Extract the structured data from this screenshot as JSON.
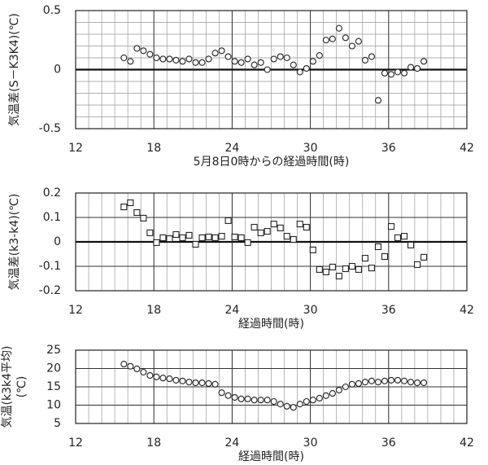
{
  "chart_data": [
    {
      "type": "scatter",
      "marker": "circle",
      "xlabel": "5月8日0時からの経過時間(時)",
      "ylabel": [
        "気温差(S－K3K4)(℃)"
      ],
      "xlim": [
        12,
        42
      ],
      "xticks": [
        12,
        18,
        24,
        30,
        36,
        42
      ],
      "ylim": [
        -0.5,
        0.5
      ],
      "yticks": [
        -0.5,
        0,
        0.5
      ],
      "grid": true,
      "minor_grid": {
        "x": 1,
        "y": 0.1
      },
      "zero_line": true,
      "series": [
        {
          "color": "#222222",
          "x": [
            15.7,
            16.2,
            16.7,
            17.2,
            17.7,
            18.2,
            18.7,
            19.2,
            19.7,
            20.2,
            20.7,
            21.2,
            21.7,
            22.2,
            22.7,
            23.2,
            23.7,
            24.2,
            24.7,
            25.2,
            25.7,
            26.2,
            26.7,
            27.2,
            27.7,
            28.2,
            28.7,
            29.2,
            29.7,
            30.2,
            30.7,
            31.2,
            31.7,
            32.2,
            32.7,
            33.2,
            33.7,
            34.2,
            34.7,
            35.2,
            35.7,
            36.2,
            36.7,
            37.2,
            37.7,
            38.2,
            38.7
          ],
          "values": [
            0.1,
            0.07,
            0.18,
            0.16,
            0.13,
            0.1,
            0.09,
            0.09,
            0.08,
            0.07,
            0.09,
            0.06,
            0.06,
            0.09,
            0.14,
            0.16,
            0.11,
            0.07,
            0.06,
            0.09,
            0.04,
            0.06,
            0.0,
            0.09,
            0.11,
            0.1,
            0.04,
            -0.02,
            0.01,
            0.07,
            0.12,
            0.25,
            0.26,
            0.35,
            0.27,
            0.2,
            0.24,
            0.08,
            0.11,
            -0.26,
            -0.03,
            -0.04,
            -0.02,
            -0.03,
            0.02,
            0.01,
            0.07
          ]
        }
      ]
    },
    {
      "type": "scatter",
      "marker": "square",
      "xlabel": "経過時間(時)",
      "ylabel": [
        "気温差(k3-k4)(℃)"
      ],
      "xlim": [
        12,
        42
      ],
      "xticks": [
        12,
        18,
        24,
        30,
        36,
        42
      ],
      "ylim": [
        -0.2,
        0.2
      ],
      "yticks": [
        -0.2,
        -0.1,
        0,
        0.1,
        0.2
      ],
      "grid": true,
      "minor_grid": {
        "x": 1
      },
      "zero_line": true,
      "series": [
        {
          "color": "#222222",
          "x": [
            15.7,
            16.2,
            16.7,
            17.2,
            17.7,
            18.2,
            18.7,
            19.2,
            19.7,
            20.2,
            20.7,
            21.2,
            21.7,
            22.2,
            22.7,
            23.2,
            23.7,
            24.2,
            24.7,
            25.2,
            25.7,
            26.2,
            26.7,
            27.2,
            27.7,
            28.2,
            28.7,
            29.2,
            29.7,
            30.2,
            30.7,
            31.2,
            31.7,
            32.2,
            32.7,
            33.2,
            33.7,
            34.2,
            34.7,
            35.2,
            35.7,
            36.2,
            36.7,
            37.2,
            37.7,
            38.2,
            38.7
          ],
          "values": [
            0.143,
            0.16,
            0.12,
            0.097,
            0.037,
            -0.003,
            0.017,
            0.013,
            0.03,
            0.017,
            0.027,
            -0.01,
            0.017,
            0.02,
            0.017,
            0.023,
            0.087,
            0.02,
            0.017,
            -0.003,
            0.06,
            0.037,
            0.043,
            0.073,
            0.057,
            0.023,
            0.01,
            0.073,
            0.06,
            -0.033,
            -0.113,
            -0.123,
            -0.103,
            -0.14,
            -0.11,
            -0.1,
            -0.113,
            -0.067,
            -0.107,
            -0.02,
            -0.06,
            0.063,
            0.017,
            0.023,
            -0.013,
            -0.093,
            -0.063
          ]
        }
      ]
    },
    {
      "type": "scatter",
      "marker": "circle",
      "xlabel": "経過時間(時)",
      "ylabel": [
        "気温(k3k4平均)",
        "(℃)"
      ],
      "xlim": [
        12,
        42
      ],
      "xticks": [
        12,
        18,
        24,
        30,
        36,
        42
      ],
      "ylim": [
        5,
        25
      ],
      "yticks": [
        5,
        10,
        15,
        20,
        25
      ],
      "grid": true,
      "minor_grid": {
        "x": 1
      },
      "zero_line": false,
      "series": [
        {
          "color": "#222222",
          "x": [
            15.7,
            16.2,
            16.7,
            17.2,
            17.7,
            18.2,
            18.7,
            19.2,
            19.7,
            20.2,
            20.7,
            21.2,
            21.7,
            22.2,
            22.7,
            23.2,
            23.7,
            24.2,
            24.7,
            25.2,
            25.7,
            26.2,
            26.7,
            27.2,
            27.7,
            28.2,
            28.7,
            29.2,
            29.7,
            30.2,
            30.7,
            31.2,
            31.7,
            32.2,
            32.7,
            33.2,
            33.7,
            34.2,
            34.7,
            35.2,
            35.7,
            36.2,
            36.7,
            37.2,
            37.7,
            38.2,
            38.7
          ],
          "values": [
            21.2,
            20.6,
            19.9,
            19.0,
            18.1,
            17.7,
            17.4,
            17.2,
            16.8,
            16.6,
            16.3,
            16.1,
            16.1,
            15.9,
            15.7,
            13.4,
            12.6,
            12.1,
            11.7,
            11.7,
            11.4,
            11.4,
            11.4,
            11.0,
            10.3,
            9.7,
            9.4,
            10.3,
            11.0,
            11.4,
            11.9,
            12.6,
            13.2,
            14.1,
            15.0,
            15.7,
            15.9,
            16.3,
            16.6,
            16.3,
            16.6,
            16.8,
            16.8,
            16.6,
            16.3,
            16.1,
            16.1
          ]
        }
      ]
    }
  ]
}
